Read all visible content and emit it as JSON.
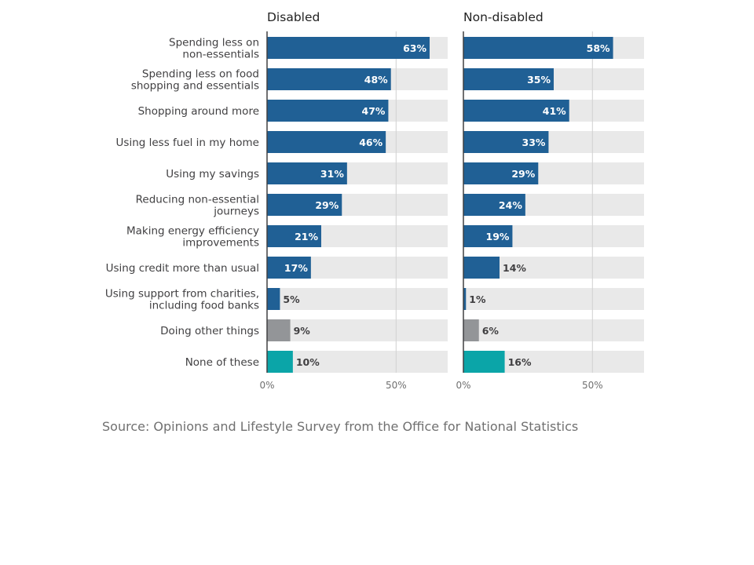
{
  "chart_data": {
    "type": "bar",
    "orientation": "horizontal",
    "categories": [
      [
        "Spending less on",
        "non-essentials"
      ],
      [
        "Spending less on food",
        "shopping and essentials"
      ],
      [
        "Shopping around more"
      ],
      [
        "Using less fuel in my home"
      ],
      [
        "Using my savings"
      ],
      [
        "Reducing non-essential",
        "journeys"
      ],
      [
        "Making energy efficiency",
        "improvements"
      ],
      [
        "Using credit more than usual"
      ],
      [
        "Using support from charities,",
        "including food banks"
      ],
      [
        "Doing other things"
      ],
      [
        "None of these"
      ]
    ],
    "panels": [
      {
        "title": "Disabled",
        "values": [
          63,
          48,
          47,
          46,
          31,
          29,
          21,
          17,
          5,
          9,
          10
        ],
        "labels": [
          "63%",
          "48%",
          "47%",
          "46%",
          "31%",
          "29%",
          "21%",
          "17%",
          "5%",
          "9%",
          "10%"
        ]
      },
      {
        "title": "Non-disabled",
        "values": [
          58,
          35,
          41,
          33,
          29,
          24,
          19,
          14,
          1,
          6,
          16
        ],
        "labels": [
          "58%",
          "35%",
          "41%",
          "33%",
          "29%",
          "24%",
          "19%",
          "14%",
          "1%",
          "6%",
          "16%"
        ]
      }
    ],
    "xlim": [
      0,
      70
    ],
    "xticks": [
      {
        "value": 0,
        "label": "0%"
      },
      {
        "value": 50,
        "label": "50%"
      }
    ],
    "bar_colors": [
      "primary",
      "primary",
      "primary",
      "primary",
      "primary",
      "primary",
      "primary",
      "primary",
      "primary",
      "other",
      "none"
    ],
    "colors": {
      "primary": "#206095",
      "other": "#939598",
      "none": "#0ba5a8",
      "track": "#e9e9e9",
      "grid": "#d0d0d0",
      "axis": "#414042",
      "label_text": "#414042",
      "value_inside": "#ffffff"
    },
    "grid": true
  },
  "source": "Source: Opinions and Lifestyle Survey from the Office for National Statistics"
}
